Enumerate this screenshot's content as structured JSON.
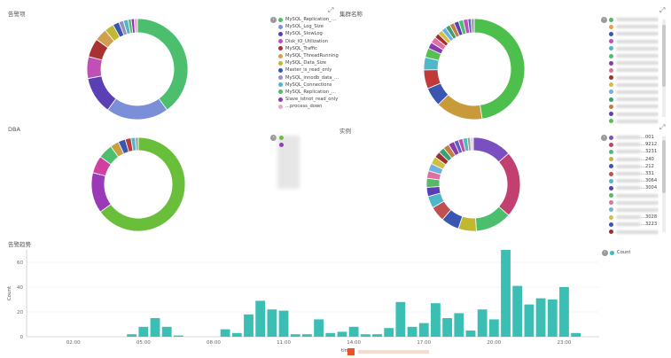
{
  "panels": {
    "p1": {
      "title": "告警项"
    },
    "p2": {
      "title": "集群名称"
    },
    "p3": {
      "title": "DBA"
    },
    "p4": {
      "title": "实例"
    },
    "p5": {
      "title": "告警趋势"
    }
  },
  "legend_p1": [
    {
      "label": "MySQL_Replication_D...",
      "color": "#4cbf6f"
    },
    {
      "label": "MySQL_Log_Size",
      "color": "#7b8fd9"
    },
    {
      "label": "MySQL_SlowLog",
      "color": "#5a3fb5"
    },
    {
      "label": "Disk_IO_Utilization",
      "color": "#c24fb8"
    },
    {
      "label": "MySQL_Traffic",
      "color": "#a83232"
    },
    {
      "label": "MySQL_ThreadRunning",
      "color": "#d0a050"
    },
    {
      "label": "MySQL_Data_Size",
      "color": "#c0b830"
    },
    {
      "label": "Master_is_read_only",
      "color": "#3a56b0"
    },
    {
      "label": "MySQL_innodb_data_...",
      "color": "#9a8fc0"
    },
    {
      "label": "MySQL_Connections",
      "color": "#4fb8c8"
    },
    {
      "label": "MySQL_Replication_N...",
      "color": "#58b868"
    },
    {
      "label": "Slave_istnot_read_only",
      "color": "#8a3ab0"
    },
    {
      "label": "...process_down",
      "color": "#e8a8c8"
    }
  ],
  "legend_p2_colors": [
    "#58b868",
    "#e8a050",
    "#3a56b0",
    "#c24fb8",
    "#4fb8c8",
    "#4cbf6f",
    "#8a3ab0",
    "#e070a0",
    "#a03030",
    "#d0c040",
    "#70b0e0",
    "#3aa070",
    "#c08040",
    "#5a3fb5",
    "#58c050"
  ],
  "legend_p4": [
    {
      "label": "...001",
      "color": "#7a4fc0"
    },
    {
      "label": "...9212",
      "color": "#c24070"
    },
    {
      "label": "...3231",
      "color": "#4cbf6f"
    },
    {
      "label": "...240",
      "color": "#c0b830"
    },
    {
      "label": "...212",
      "color": "#3a56b0"
    },
    {
      "label": "...331",
      "color": "#c05050"
    },
    {
      "label": "...3064",
      "color": "#4fb8c8"
    },
    {
      "label": "...3004",
      "color": "#5a3fb5"
    },
    {
      "label": "",
      "color": "#58b868"
    },
    {
      "label": "",
      "color": "#e070a0"
    },
    {
      "label": "",
      "color": "#70b0e0"
    },
    {
      "label": "...3028",
      "color": "#d0c040"
    },
    {
      "label": "...3223",
      "color": "#3a56b0"
    },
    {
      "label": "",
      "color": "#9a3030"
    }
  ],
  "legend_p5": [
    {
      "label": "Count",
      "color": "#3bbfb5"
    }
  ],
  "chart_data": [
    {
      "type": "pie",
      "donut": true,
      "panel": "p1",
      "title": "告警项",
      "slices": [
        {
          "value": 40,
          "color": "#4cbf6f"
        },
        {
          "value": 20,
          "color": "#7b8fd9"
        },
        {
          "value": 12,
          "color": "#5a3fb5"
        },
        {
          "value": 7,
          "color": "#c24fb8"
        },
        {
          "value": 6,
          "color": "#a83232"
        },
        {
          "value": 4,
          "color": "#d0a050"
        },
        {
          "value": 3,
          "color": "#c0b830"
        },
        {
          "value": 2,
          "color": "#3a56b0"
        },
        {
          "value": 1.5,
          "color": "#9a8fc0"
        },
        {
          "value": 1.5,
          "color": "#4fb8c8"
        },
        {
          "value": 1,
          "color": "#58b868"
        },
        {
          "value": 1,
          "color": "#8a3ab0"
        },
        {
          "value": 1,
          "color": "#e8a8c8"
        }
      ]
    },
    {
      "type": "pie",
      "donut": true,
      "panel": "p2",
      "title": "集群名称",
      "slices": [
        {
          "value": 47,
          "color": "#4cbf4c"
        },
        {
          "value": 15,
          "color": "#c89a3a"
        },
        {
          "value": 6,
          "color": "#3a56b0"
        },
        {
          "value": 6,
          "color": "#c03a3a"
        },
        {
          "value": 4,
          "color": "#4fb8c8"
        },
        {
          "value": 3,
          "color": "#58c050"
        },
        {
          "value": 2,
          "color": "#8a3ab0"
        },
        {
          "value": 2,
          "color": "#e070a0"
        },
        {
          "value": 1.5,
          "color": "#a03030"
        },
        {
          "value": 1.5,
          "color": "#d0c040"
        },
        {
          "value": 1.5,
          "color": "#70b0e0"
        },
        {
          "value": 1.5,
          "color": "#3aa070"
        },
        {
          "value": 1.5,
          "color": "#c08040"
        },
        {
          "value": 1.5,
          "color": "#5a3fb5"
        },
        {
          "value": 1.5,
          "color": "#4cbf6f"
        },
        {
          "value": 1.5,
          "color": "#c24fb8"
        },
        {
          "value": 1,
          "color": "#6060c0"
        },
        {
          "value": 1,
          "color": "#a0a0a0"
        }
      ]
    },
    {
      "type": "pie",
      "donut": true,
      "panel": "p3",
      "title": "DBA",
      "slices": [
        {
          "value": 65,
          "color": "#6abf3a"
        },
        {
          "value": 14,
          "color": "#9a3ab8"
        },
        {
          "value": 6,
          "color": "#d040a0"
        },
        {
          "value": 5,
          "color": "#4cbf6f"
        },
        {
          "value": 3,
          "color": "#c8a040"
        },
        {
          "value": 2.5,
          "color": "#3a56b0"
        },
        {
          "value": 2,
          "color": "#c03a3a"
        },
        {
          "value": 1.5,
          "color": "#4fb8c8"
        },
        {
          "value": 1,
          "color": "#a0a0a0"
        }
      ]
    },
    {
      "type": "pie",
      "donut": true,
      "panel": "p4",
      "title": "实例",
      "slices": [
        {
          "value": 13,
          "color": "#7a4fc0"
        },
        {
          "value": 22,
          "color": "#c24070"
        },
        {
          "value": 12,
          "color": "#4cbf6f"
        },
        {
          "value": 6,
          "color": "#c0b830"
        },
        {
          "value": 6,
          "color": "#3a56b0"
        },
        {
          "value": 5,
          "color": "#c05050"
        },
        {
          "value": 4,
          "color": "#4fb8c8"
        },
        {
          "value": 3,
          "color": "#5a3fb5"
        },
        {
          "value": 3,
          "color": "#58b868"
        },
        {
          "value": 2.5,
          "color": "#e070a0"
        },
        {
          "value": 2.5,
          "color": "#70b0e0"
        },
        {
          "value": 2.5,
          "color": "#d0c040"
        },
        {
          "value": 2,
          "color": "#9a3030"
        },
        {
          "value": 2,
          "color": "#3aa070"
        },
        {
          "value": 2,
          "color": "#c08040"
        },
        {
          "value": 2,
          "color": "#8a3ab0"
        },
        {
          "value": 1.5,
          "color": "#6060c0"
        },
        {
          "value": 1.5,
          "color": "#c24fb8"
        },
        {
          "value": 1.5,
          "color": "#4cbfb5"
        },
        {
          "value": 1,
          "color": "#a0a0a0"
        },
        {
          "value": 1,
          "color": "#d8d8d8"
        }
      ]
    },
    {
      "type": "bar",
      "panel": "p5",
      "title": "告警趋势",
      "xlabel": "time",
      "ylabel": "Count",
      "ylim": [
        0,
        70
      ],
      "yticks": [
        0,
        20,
        40,
        60
      ],
      "xticks": [
        {
          "label": "02:00",
          "hour": 2
        },
        {
          "label": "05:00",
          "hour": 5
        },
        {
          "label": "08:00",
          "hour": 8
        },
        {
          "label": "11:00",
          "hour": 11
        },
        {
          "label": "14:00",
          "hour": 14
        },
        {
          "label": "17:00",
          "hour": 17
        },
        {
          "label": "20:00",
          "hour": 20
        },
        {
          "label": "23:00",
          "hour": 23
        }
      ],
      "xrange": [
        0,
        24.5
      ],
      "bin_hours": 0.5,
      "series": [
        {
          "name": "Count",
          "color": "#3bbfb5",
          "x": [
            4.5,
            5,
            5.5,
            6,
            6.5,
            8.5,
            9,
            9.5,
            10,
            10.5,
            11,
            11.5,
            12,
            12.5,
            13,
            13.5,
            14,
            14.5,
            15,
            15.5,
            16,
            16.5,
            17,
            17.5,
            18,
            18.5,
            19,
            19.5,
            20,
            20.5,
            21,
            21.5,
            22,
            22.5,
            23,
            23.5
          ],
          "values": [
            2,
            8,
            15,
            8,
            1,
            6,
            3,
            18,
            29,
            22,
            21,
            2,
            2,
            14,
            3,
            4,
            8,
            2,
            2,
            7,
            28,
            8,
            11,
            27,
            15,
            19,
            5,
            22,
            14,
            70,
            41,
            26,
            31,
            30,
            40,
            3
          ]
        }
      ]
    }
  ]
}
